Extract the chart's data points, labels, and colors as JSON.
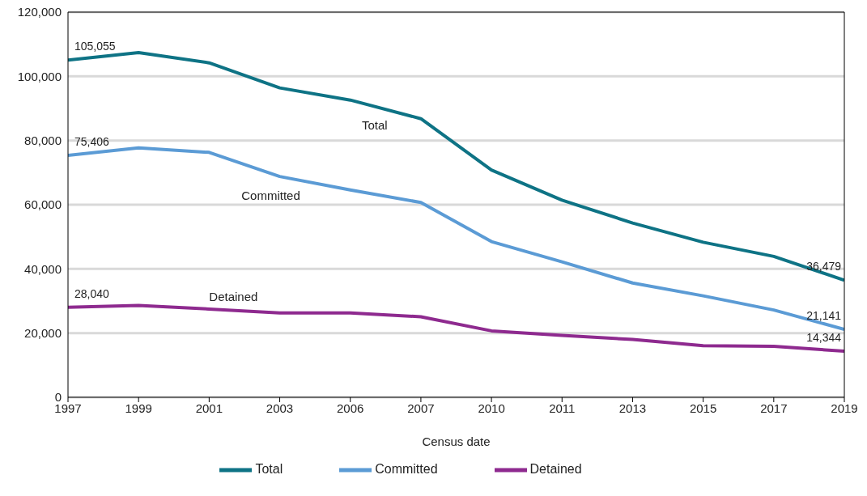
{
  "chart_data": {
    "type": "line",
    "xlabel": "Census date",
    "categories": [
      "1997",
      "1999",
      "2001",
      "2003",
      "2006",
      "2007",
      "2010",
      "2011",
      "2013",
      "2015",
      "2017",
      "2019"
    ],
    "series": [
      {
        "name": "Total",
        "color": "#0e7385",
        "values": [
          105055,
          107400,
          104200,
          96400,
          92600,
          86800,
          70800,
          61400,
          54300,
          48300,
          43900,
          36479
        ],
        "value_labels": [
          "105,055",
          null,
          null,
          null,
          null,
          null,
          null,
          null,
          null,
          null,
          null,
          "36,479"
        ]
      },
      {
        "name": "Committed",
        "color": "#5b9bd5",
        "values": [
          75406,
          77700,
          76300,
          68800,
          64600,
          60700,
          48500,
          42200,
          35600,
          31600,
          27200,
          21141
        ],
        "value_labels": [
          "75,406",
          null,
          null,
          null,
          null,
          null,
          null,
          null,
          null,
          null,
          null,
          "21,141"
        ]
      },
      {
        "name": "Detained",
        "color": "#8e2a8f",
        "values": [
          28040,
          28600,
          27500,
          26300,
          26300,
          25100,
          20700,
          19300,
          18000,
          16100,
          15900,
          14344
        ],
        "value_labels": [
          "28,040",
          null,
          null,
          null,
          null,
          null,
          null,
          null,
          null,
          null,
          null,
          "14,344"
        ]
      }
    ],
    "ylim": [
      0,
      120000
    ],
    "yticks": [
      {
        "value": 0,
        "label": "0"
      },
      {
        "value": 20000,
        "label": "20,000"
      },
      {
        "value": 40000,
        "label": "40,000"
      },
      {
        "value": 60000,
        "label": "60,000"
      },
      {
        "value": 80000,
        "label": "80,000"
      },
      {
        "value": 100000,
        "label": "100,000"
      },
      {
        "value": 120000,
        "label": "120,000"
      }
    ],
    "grid": "y",
    "legend": "bottom",
    "marker": "none",
    "line_style": "solid"
  }
}
